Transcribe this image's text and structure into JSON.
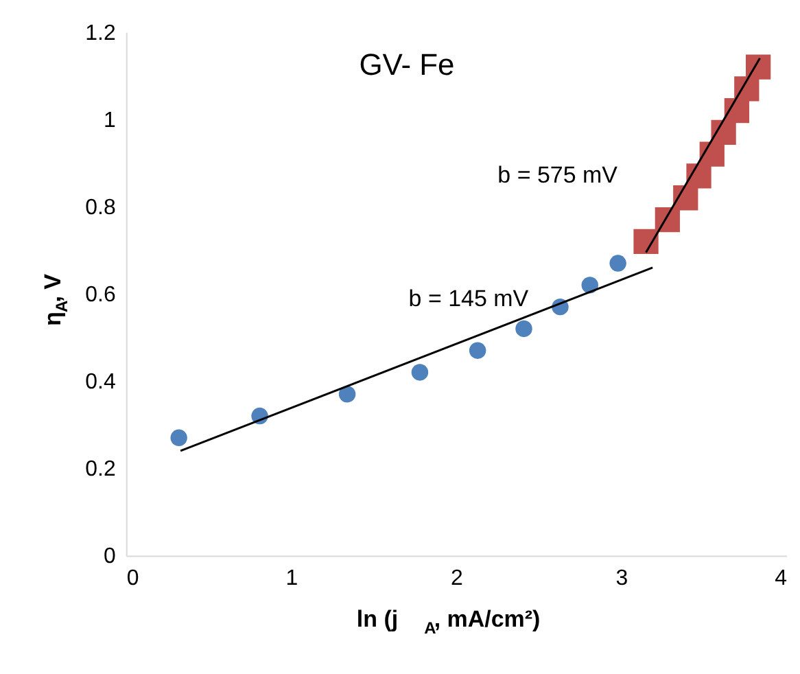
{
  "chart_data": {
    "type": "scatter",
    "title": "GV- Fe",
    "xlabel": "ln (j$_{A}$, mA/cm²)",
    "ylabel": "η$_{A}$, V",
    "xlim": [
      0,
      4
    ],
    "xticks": [
      0,
      1,
      2,
      3,
      4
    ],
    "ylim": [
      0,
      1.2
    ],
    "yticks": [
      0,
      0.2,
      0.4,
      0.6,
      0.8,
      1,
      1.2
    ],
    "grid": false,
    "series": [
      {
        "marker": "circle",
        "color": "#4f81bd",
        "x": [
          0.32,
          0.81,
          1.34,
          1.78,
          2.13,
          2.41,
          2.63,
          2.81,
          2.98
        ],
        "values": [
          0.27,
          0.32,
          0.37,
          0.42,
          0.47,
          0.52,
          0.57,
          0.62,
          0.67
        ]
      },
      {
        "marker": "square",
        "color": "#c0504d",
        "x": [
          3.15,
          3.28,
          3.39,
          3.47,
          3.55,
          3.62,
          3.7,
          3.76,
          3.83
        ],
        "values": [
          0.72,
          0.77,
          0.82,
          0.87,
          0.92,
          0.97,
          1.02,
          1.07,
          1.12
        ]
      },
      {
        "type": "line",
        "line_style": "solid",
        "color": "#000000",
        "x": [
          0.33,
          3.19
        ],
        "values": [
          0.24,
          0.66
        ]
      },
      {
        "type": "line",
        "line_style": "solid",
        "color": "#000000",
        "x": [
          3.15,
          3.84
        ],
        "values": [
          0.695,
          1.14
        ]
      }
    ],
    "annotations": [
      "b = 575 mV",
      "b = 145 mV"
    ]
  }
}
